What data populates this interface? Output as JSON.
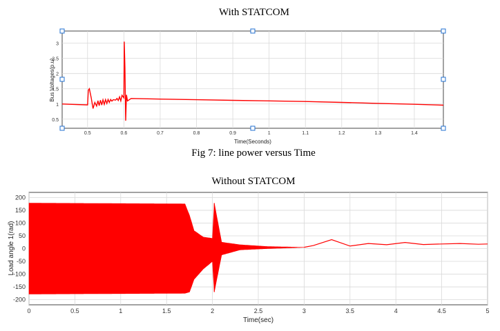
{
  "figure_title_top": "With STATCOM",
  "caption": "Fig 7: line power versus Time",
  "figure_title_bottom": "Without STATCOM",
  "colors": {
    "line": "#ff0000",
    "grid": "#d9d9d9",
    "axis": "#444444",
    "handle": "#1f6fd1"
  },
  "chart_data": [
    {
      "type": "line",
      "title": "With STATCOM",
      "xlabel": "Time(Seconds)",
      "ylabel": "Bus Voltages(p.u)",
      "xlim": [
        0.43,
        1.48
      ],
      "ylim": [
        0.2,
        3.4
      ],
      "xticks": [
        0.5,
        0.6,
        0.7,
        0.8,
        0.9,
        1,
        1.1,
        1.2,
        1.3,
        1.4
      ],
      "xtick_labels": [
        "0.5",
        "0.6",
        "0.7",
        "0.8",
        "0.9",
        "1",
        "1.1",
        "1.2",
        "1.3",
        "1.4"
      ],
      "yticks": [
        0.5,
        1,
        1.5,
        2,
        2.5,
        3
      ],
      "ytick_labels": [
        "0.5",
        "1",
        "1.5",
        "2",
        "2.5",
        "3"
      ],
      "grid": true,
      "series": [
        {
          "x": [
            0.43,
            0.5,
            0.502,
            0.505,
            0.51,
            0.515,
            0.52,
            0.6,
            0.601,
            0.603,
            0.605,
            0.607,
            0.61,
            0.62,
            0.7,
            0.8,
            0.9,
            1.0,
            1.1,
            1.2,
            1.3,
            1.4,
            1.48
          ],
          "y": [
            1.0,
            0.97,
            1.45,
            1.5,
            1.2,
            0.85,
            1.05,
            1.2,
            3.05,
            2.2,
            0.45,
            1.3,
            1.1,
            1.18,
            1.16,
            1.14,
            1.12,
            1.1,
            1.08,
            1.05,
            1.02,
            0.99,
            0.96
          ]
        }
      ]
    },
    {
      "type": "line",
      "title": "Without STATCOM",
      "xlabel": "Time(sec)",
      "ylabel": "Load angle 1(rad)",
      "xlim": [
        0,
        5
      ],
      "ylim": [
        -220,
        220
      ],
      "xticks": [
        0,
        0.5,
        1,
        1.5,
        2,
        2.5,
        3,
        3.5,
        4,
        4.5,
        5
      ],
      "xtick_labels": [
        "0",
        "0.5",
        "1",
        "1.5",
        "2",
        "2.5",
        "3",
        "3.5",
        "4",
        "4.5",
        "5"
      ],
      "yticks": [
        -200,
        -150,
        -100,
        -50,
        0,
        50,
        100,
        150,
        200
      ],
      "ytick_labels": [
        "-200",
        "-150",
        "-100",
        "-50",
        "0",
        "50",
        "100",
        "150",
        "200"
      ],
      "grid": true,
      "envelope": {
        "x": [
          0,
          1.7,
          1.75,
          1.8,
          1.9,
          2.0,
          2.02,
          2.1,
          2.3,
          2.6,
          3.0
        ],
        "upper": [
          178,
          175,
          130,
          70,
          45,
          40,
          178,
          25,
          15,
          8,
          5
        ],
        "lower": [
          -178,
          -175,
          -170,
          -120,
          -80,
          -50,
          -170,
          -25,
          -5,
          0,
          5
        ]
      },
      "tail": {
        "x": [
          3.0,
          3.1,
          3.3,
          3.5,
          3.7,
          3.9,
          4.1,
          4.3,
          4.5,
          4.7,
          4.9,
          5.0
        ],
        "y": [
          5,
          12,
          35,
          10,
          20,
          15,
          24,
          16,
          18,
          20,
          17,
          18
        ]
      }
    }
  ]
}
